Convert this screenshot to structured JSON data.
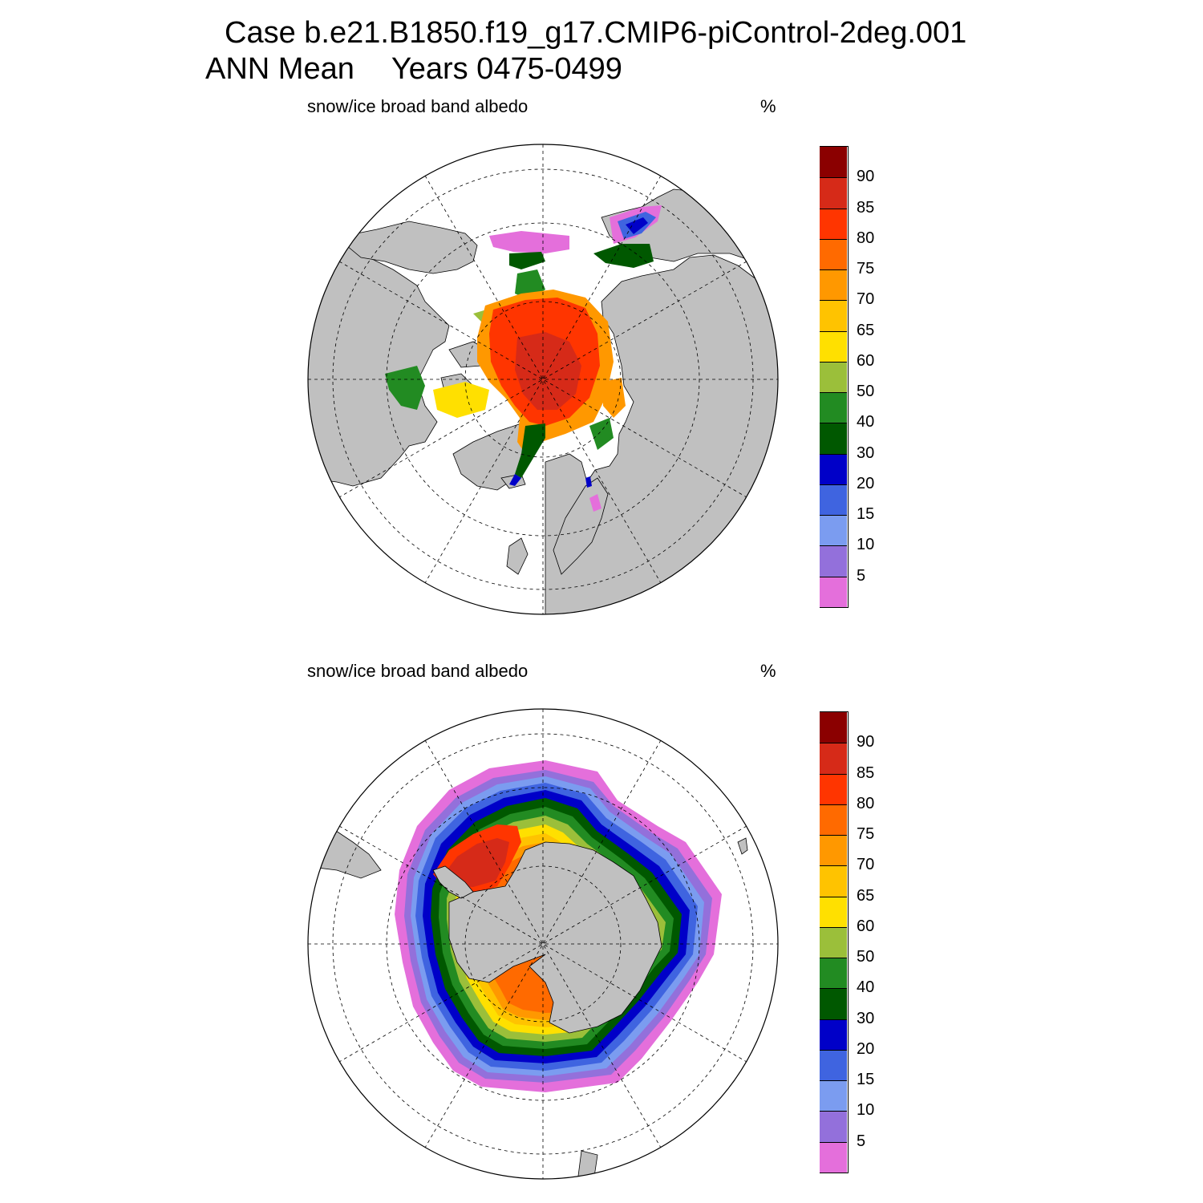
{
  "header": {
    "case_line": "Case b.e21.B1850.f19_g17.CMIP6-piControl-2deg.001",
    "season": "ANN Mean",
    "years": "Years 0475-0499"
  },
  "panels": [
    {
      "id": "nh",
      "variable_label": "snow/ice broad band albedo",
      "units_label": "%"
    },
    {
      "id": "sh",
      "variable_label": "snow/ice broad band albedo",
      "units_label": "%"
    }
  ],
  "colorbar": {
    "labels": [
      "90",
      "85",
      "80",
      "75",
      "70",
      "65",
      "60",
      "50",
      "40",
      "30",
      "20",
      "15",
      "10",
      "5"
    ],
    "levels_ascending": [
      5,
      10,
      15,
      20,
      30,
      40,
      50,
      60,
      65,
      70,
      75,
      80,
      85,
      90
    ],
    "colors_bottom_to_top": [
      "#e46fdb",
      "#9370db",
      "#7b9cf0",
      "#3f64e0",
      "#0000c8",
      "#005800",
      "#228b22",
      "#9bbf3a",
      "#ffe000",
      "#ffc300",
      "#ff9800",
      "#ff6a00",
      "#ff3500",
      "#d62a18",
      "#8b0000"
    ]
  },
  "colors": {
    "land": "#c0c0c0",
    "ocean": "#ffffff",
    "grid": "#000000"
  }
}
